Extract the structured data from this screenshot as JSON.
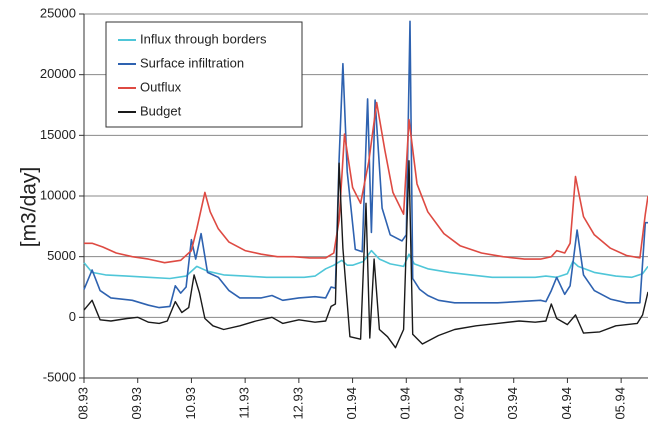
{
  "chart_data": {
    "type": "line",
    "title": "",
    "xlabel": "",
    "ylabel": "[m3/day]",
    "ylim": [
      -5000,
      25000
    ],
    "yticks": [
      -5000,
      0,
      5000,
      10000,
      15000,
      20000,
      25000
    ],
    "ytick_labels": [
      "-5000",
      "0",
      "5000",
      "10000",
      "15000",
      "20000",
      "25000"
    ],
    "xlim": [
      0,
      10.5
    ],
    "xticks": [
      0,
      1,
      2,
      3,
      4,
      5,
      6,
      7,
      8,
      9,
      10
    ],
    "xtick_labels": [
      "08.93",
      "09.93",
      "10.93",
      "11.93",
      "12.93",
      "01.94",
      "01.94",
      "02.94",
      "03.94",
      "04.94",
      "05.94"
    ],
    "grid": "horizontal",
    "legend_position": "top-left",
    "series": [
      {
        "name": "Influx through borders",
        "color": "#4fc6d8",
        "points": [
          [
            0.0,
            4500
          ],
          [
            0.15,
            3700
          ],
          [
            0.4,
            3500
          ],
          [
            0.8,
            3400
          ],
          [
            1.2,
            3300
          ],
          [
            1.6,
            3200
          ],
          [
            1.9,
            3400
          ],
          [
            2.1,
            4200
          ],
          [
            2.3,
            3800
          ],
          [
            2.6,
            3500
          ],
          [
            3.0,
            3400
          ],
          [
            3.4,
            3300
          ],
          [
            3.8,
            3300
          ],
          [
            4.1,
            3300
          ],
          [
            4.3,
            3400
          ],
          [
            4.5,
            4000
          ],
          [
            4.65,
            4300
          ],
          [
            4.8,
            4700
          ],
          [
            4.9,
            4300
          ],
          [
            5.0,
            4300
          ],
          [
            5.2,
            4600
          ],
          [
            5.35,
            5500
          ],
          [
            5.5,
            4800
          ],
          [
            5.7,
            4400
          ],
          [
            5.95,
            4200
          ],
          [
            6.05,
            5200
          ],
          [
            6.15,
            4400
          ],
          [
            6.4,
            4000
          ],
          [
            6.8,
            3700
          ],
          [
            7.2,
            3500
          ],
          [
            7.6,
            3300
          ],
          [
            8.0,
            3300
          ],
          [
            8.4,
            3300
          ],
          [
            8.6,
            3400
          ],
          [
            8.8,
            3300
          ],
          [
            9.0,
            3600
          ],
          [
            9.1,
            4600
          ],
          [
            9.2,
            4200
          ],
          [
            9.5,
            3700
          ],
          [
            9.9,
            3400
          ],
          [
            10.2,
            3300
          ],
          [
            10.4,
            3600
          ],
          [
            10.5,
            4200
          ]
        ]
      },
      {
        "name": "Surface infiltration",
        "color": "#2e62b0",
        "points": [
          [
            0.0,
            2300
          ],
          [
            0.15,
            3900
          ],
          [
            0.3,
            2200
          ],
          [
            0.5,
            1600
          ],
          [
            0.9,
            1400
          ],
          [
            1.2,
            1000
          ],
          [
            1.4,
            800
          ],
          [
            1.6,
            900
          ],
          [
            1.7,
            2600
          ],
          [
            1.8,
            2000
          ],
          [
            1.9,
            2500
          ],
          [
            2.0,
            6400
          ],
          [
            2.08,
            4800
          ],
          [
            2.18,
            6900
          ],
          [
            2.3,
            3700
          ],
          [
            2.5,
            3300
          ],
          [
            2.7,
            2200
          ],
          [
            2.9,
            1600
          ],
          [
            3.3,
            1600
          ],
          [
            3.5,
            1800
          ],
          [
            3.7,
            1400
          ],
          [
            4.0,
            1600
          ],
          [
            4.3,
            1700
          ],
          [
            4.5,
            1600
          ],
          [
            4.6,
            2500
          ],
          [
            4.68,
            2400
          ],
          [
            4.75,
            13000
          ],
          [
            4.82,
            20900
          ],
          [
            4.9,
            12000
          ],
          [
            5.05,
            5600
          ],
          [
            5.18,
            5400
          ],
          [
            5.28,
            18000
          ],
          [
            5.35,
            7000
          ],
          [
            5.42,
            17900
          ],
          [
            5.55,
            9000
          ],
          [
            5.7,
            6800
          ],
          [
            5.92,
            6300
          ],
          [
            6.0,
            6800
          ],
          [
            6.07,
            24400
          ],
          [
            6.12,
            3200
          ],
          [
            6.25,
            2300
          ],
          [
            6.4,
            1800
          ],
          [
            6.6,
            1400
          ],
          [
            6.9,
            1200
          ],
          [
            7.3,
            1200
          ],
          [
            7.7,
            1200
          ],
          [
            8.1,
            1300
          ],
          [
            8.5,
            1400
          ],
          [
            8.6,
            1300
          ],
          [
            8.7,
            2200
          ],
          [
            8.8,
            3300
          ],
          [
            8.95,
            1900
          ],
          [
            9.05,
            2600
          ],
          [
            9.18,
            7200
          ],
          [
            9.3,
            3500
          ],
          [
            9.5,
            2200
          ],
          [
            9.8,
            1500
          ],
          [
            10.1,
            1200
          ],
          [
            10.35,
            1200
          ],
          [
            10.45,
            7800
          ],
          [
            10.5,
            7800
          ]
        ]
      },
      {
        "name": "Outflux",
        "color": "#de4a42",
        "points": [
          [
            0.0,
            6100
          ],
          [
            0.15,
            6100
          ],
          [
            0.35,
            5800
          ],
          [
            0.6,
            5300
          ],
          [
            0.9,
            5000
          ],
          [
            1.2,
            4800
          ],
          [
            1.5,
            4500
          ],
          [
            1.8,
            4700
          ],
          [
            2.0,
            5500
          ],
          [
            2.1,
            7300
          ],
          [
            2.25,
            10300
          ],
          [
            2.35,
            8700
          ],
          [
            2.5,
            7300
          ],
          [
            2.7,
            6200
          ],
          [
            3.0,
            5500
          ],
          [
            3.3,
            5200
          ],
          [
            3.6,
            5000
          ],
          [
            3.9,
            5000
          ],
          [
            4.2,
            4900
          ],
          [
            4.5,
            4900
          ],
          [
            4.65,
            5300
          ],
          [
            4.75,
            8000
          ],
          [
            4.85,
            15100
          ],
          [
            5.0,
            10700
          ],
          [
            5.15,
            9400
          ],
          [
            5.3,
            12800
          ],
          [
            5.45,
            17700
          ],
          [
            5.6,
            13800
          ],
          [
            5.75,
            10300
          ],
          [
            5.95,
            8500
          ],
          [
            6.05,
            16300
          ],
          [
            6.2,
            11000
          ],
          [
            6.4,
            8700
          ],
          [
            6.7,
            6900
          ],
          [
            7.0,
            5900
          ],
          [
            7.4,
            5300
          ],
          [
            7.8,
            5000
          ],
          [
            8.2,
            4800
          ],
          [
            8.5,
            4800
          ],
          [
            8.7,
            5000
          ],
          [
            8.8,
            5500
          ],
          [
            8.95,
            5300
          ],
          [
            9.05,
            6100
          ],
          [
            9.15,
            11600
          ],
          [
            9.3,
            8300
          ],
          [
            9.5,
            6800
          ],
          [
            9.8,
            5700
          ],
          [
            10.1,
            5100
          ],
          [
            10.35,
            4900
          ],
          [
            10.45,
            8500
          ],
          [
            10.5,
            10000
          ]
        ]
      },
      {
        "name": "Budget",
        "color": "#1a1a1a",
        "points": [
          [
            0.0,
            600
          ],
          [
            0.15,
            1400
          ],
          [
            0.3,
            -200
          ],
          [
            0.5,
            -300
          ],
          [
            0.8,
            -100
          ],
          [
            1.0,
            0
          ],
          [
            1.2,
            -400
          ],
          [
            1.4,
            -500
          ],
          [
            1.55,
            -300
          ],
          [
            1.7,
            1300
          ],
          [
            1.82,
            400
          ],
          [
            1.95,
            800
          ],
          [
            2.05,
            3500
          ],
          [
            2.15,
            2000
          ],
          [
            2.25,
            -100
          ],
          [
            2.4,
            -700
          ],
          [
            2.6,
            -1000
          ],
          [
            2.9,
            -700
          ],
          [
            3.2,
            -300
          ],
          [
            3.5,
            0
          ],
          [
            3.7,
            -500
          ],
          [
            4.0,
            -200
          ],
          [
            4.3,
            -400
          ],
          [
            4.5,
            -300
          ],
          [
            4.6,
            900
          ],
          [
            4.68,
            1100
          ],
          [
            4.75,
            12700
          ],
          [
            4.82,
            5700
          ],
          [
            4.95,
            -1600
          ],
          [
            5.15,
            -1800
          ],
          [
            5.25,
            9400
          ],
          [
            5.32,
            -1700
          ],
          [
            5.4,
            4800
          ],
          [
            5.5,
            -1000
          ],
          [
            5.65,
            -1600
          ],
          [
            5.8,
            -2500
          ],
          [
            5.95,
            -1000
          ],
          [
            6.05,
            12900
          ],
          [
            6.12,
            -1400
          ],
          [
            6.3,
            -2200
          ],
          [
            6.6,
            -1500
          ],
          [
            6.9,
            -1000
          ],
          [
            7.3,
            -700
          ],
          [
            7.7,
            -500
          ],
          [
            8.1,
            -300
          ],
          [
            8.4,
            -400
          ],
          [
            8.6,
            -300
          ],
          [
            8.7,
            1100
          ],
          [
            8.8,
            -100
          ],
          [
            9.0,
            -600
          ],
          [
            9.15,
            200
          ],
          [
            9.3,
            -1300
          ],
          [
            9.6,
            -1200
          ],
          [
            9.9,
            -700
          ],
          [
            10.3,
            -500
          ],
          [
            10.4,
            200
          ],
          [
            10.5,
            2100
          ]
        ]
      }
    ]
  }
}
